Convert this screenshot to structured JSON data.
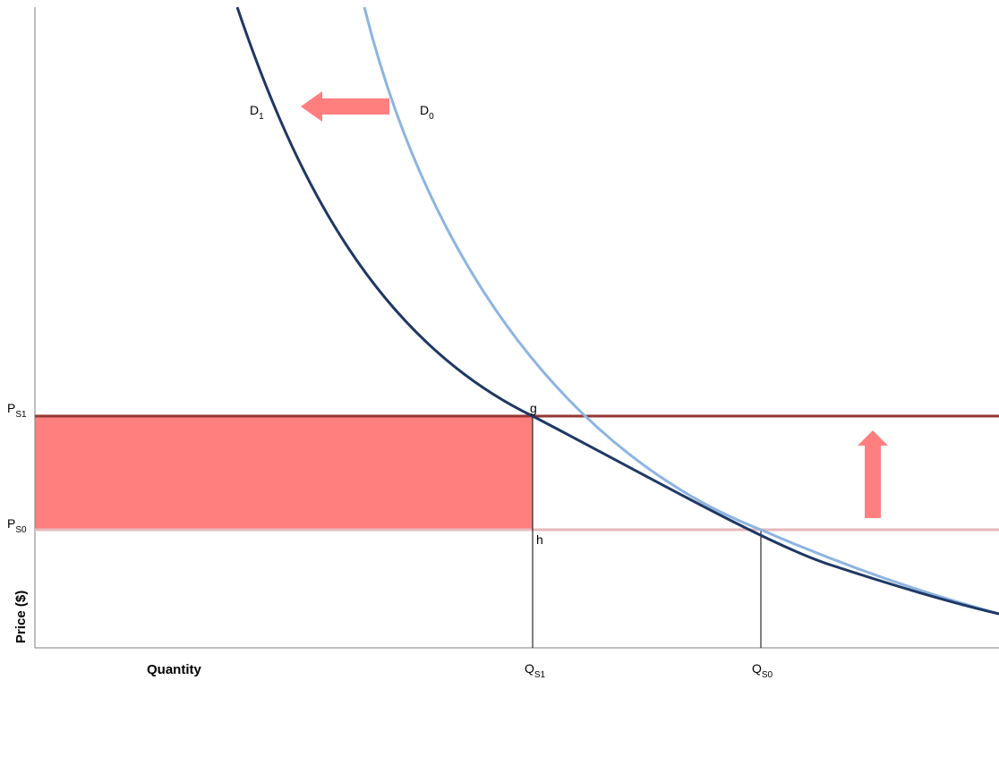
{
  "chart_data": {
    "type": "line",
    "title": "",
    "xlabel": "Quantity",
    "ylabel": "Price ($)",
    "colors": {
      "d0": "#8db4e2",
      "d1": "#1f3864",
      "ps1_line": "#953735",
      "ps0_line": "#e6b9b8",
      "shaded_area": "#ff7f7f",
      "arrow": "#ff7f7f",
      "axis": "#7f7f7f",
      "drop_line": "#000000"
    },
    "price_levels": [
      {
        "main": "P",
        "sub": "S1"
      },
      {
        "main": "P",
        "sub": "S0"
      }
    ],
    "quantity_levels": [
      {
        "main": "Q",
        "sub": "S1"
      },
      {
        "main": "Q",
        "sub": "S0"
      }
    ],
    "series": [
      {
        "name_main": "D",
        "name_sub": "0"
      },
      {
        "name_main": "D",
        "name_sub": "1"
      }
    ],
    "points": {
      "g": "g",
      "h": "h"
    },
    "annotations": {
      "demand_shift": "left",
      "price_shift": "up",
      "shaded_region": "rectangle between PS0 and PS1 from 0 to QS1"
    }
  }
}
